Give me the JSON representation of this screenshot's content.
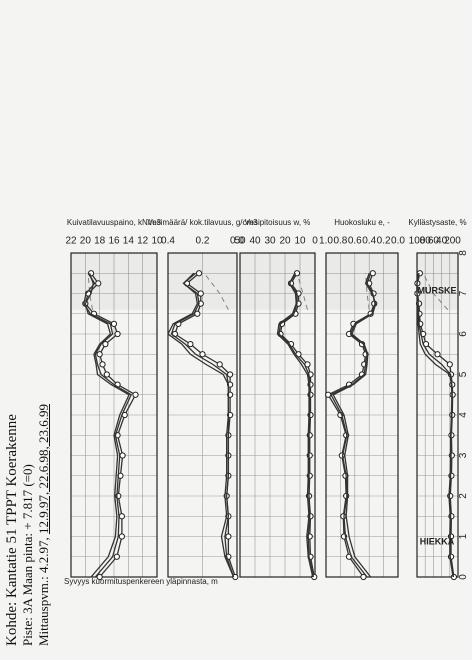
{
  "header": {
    "line1": "Kohde: Kantatie 51 TPPT Koerakenne",
    "line2": "Piste: 3A Maan pinta: + 7.817 (=0)",
    "line3_prefix": "Mittauspvm.: 4.2.97,",
    "line3_dates": "12.9.97, 22.6.98, 23.6.99"
  },
  "chart_data": {
    "type": "line",
    "shared_depth_axis": {
      "label": "Syvyys kuormituspenkereen yläpinnasta, m",
      "range": [
        0,
        8
      ],
      "ticks": [
        "0",
        "1",
        "2",
        "3",
        "4",
        "5",
        "6",
        "7",
        "8"
      ]
    },
    "zone_labels": [
      {
        "text": "HIEKKA",
        "depth": 0.8
      },
      {
        "text": "MURSKE",
        "depth": 7.0
      }
    ],
    "panels": [
      {
        "id": "unit-weight",
        "axis_label": "Kuivatilavuuspaino, kN/m3",
        "range": [
          10,
          22
        ],
        "ticks": [
          "10",
          "12",
          "14",
          "16",
          "18",
          "20",
          "22"
        ],
        "series": [
          {
            "depth": [
              0,
              0.5,
              1.0,
              1.5,
              2.0,
              2.5,
              3.0,
              3.5,
              4.0,
              4.5,
              4.75,
              5.0,
              5.25,
              5.5,
              5.75,
              6.0,
              6.25,
              6.5,
              6.75,
              7.0,
              7.25,
              7.5
            ],
            "values": [
              18.0,
              15.6,
              14.9,
              14.9,
              15.4,
              15.1,
              14.8,
              15.5,
              14.5,
              13.0,
              15.5,
              17.0,
              17.6,
              18.0,
              17.2,
              15.5,
              16.0,
              18.8,
              20.0,
              19.6,
              18.2,
              19.2
            ],
            "marker": true
          },
          {
            "depth": [
              0,
              0.5,
              1.0,
              1.5,
              2.0,
              2.5,
              3.0,
              3.5,
              4.0,
              4.5,
              4.75,
              5.0,
              5.25,
              5.5,
              5.75,
              6.0,
              6.25,
              6.5,
              6.75,
              7.0,
              7.25,
              7.5
            ],
            "values": [
              18.6,
              16.2,
              15.4,
              15.3,
              15.6,
              15.4,
              15.2,
              15.8,
              14.9,
              13.6,
              16.0,
              17.8,
              18.3,
              18.6,
              17.8,
              16.2,
              16.5,
              19.3,
              20.2,
              19.9,
              18.7,
              19.6
            ],
            "marker": false
          },
          {
            "depth": [
              0,
              0.5,
              1.0,
              1.5,
              2.0,
              2.5,
              3.0,
              3.5,
              4.0,
              4.5,
              4.75,
              5.0,
              5.25,
              5.5,
              5.75,
              6.0,
              6.25,
              6.5,
              6.75,
              7.0,
              7.25,
              7.5
            ],
            "values": [
              19.2,
              16.8,
              15.8,
              15.6,
              15.9,
              15.7,
              15.5,
              16.0,
              15.2,
              13.9,
              16.4,
              18.3,
              18.5,
              18.8,
              18.0,
              16.5,
              16.9,
              19.6,
              20.0,
              19.2,
              18.9,
              19.4
            ],
            "marker": false
          }
        ],
        "dashed": {
          "depth": [
            6.6,
            7.0,
            7.5
          ],
          "values": [
            19.0,
            19.4,
            19.6
          ]
        }
      },
      {
        "id": "water-content-vol",
        "axis_label": "Vesimäärä/ kok.tilavuus, g/cm3",
        "range": [
          0,
          0.4
        ],
        "ticks": [
          "0.0",
          "0.2",
          "0.4"
        ],
        "series": [
          {
            "depth": [
              0,
              0.5,
              1.0,
              1.5,
              2.0,
              2.5,
              3.0,
              3.5,
              4.0,
              4.5,
              4.75,
              5.0,
              5.25,
              5.5,
              5.75,
              6.0,
              6.25,
              6.5,
              6.75,
              7.0,
              7.25,
              7.5
            ],
            "values": [
              0.01,
              0.05,
              0.05,
              0.05,
              0.06,
              0.05,
              0.05,
              0.05,
              0.04,
              0.04,
              0.04,
              0.04,
              0.1,
              0.2,
              0.27,
              0.36,
              0.34,
              0.23,
              0.21,
              0.21,
              0.29,
              0.22
            ],
            "marker": true
          },
          {
            "depth": [
              0,
              0.5,
              1.0,
              1.5,
              2.0,
              2.5,
              3.0,
              3.5,
              4.0,
              4.5,
              4.75,
              5.0,
              5.25,
              5.5,
              5.75,
              6.0,
              6.25,
              6.5,
              6.75,
              7.0,
              7.25,
              7.5
            ],
            "values": [
              0.02,
              0.06,
              0.07,
              0.05,
              0.06,
              0.05,
              0.05,
              0.05,
              0.05,
              0.05,
              0.05,
              0.06,
              0.14,
              0.24,
              0.3,
              0.38,
              0.36,
              0.25,
              0.22,
              0.23,
              0.31,
              0.24
            ],
            "marker": false
          },
          {
            "depth": [
              0,
              0.5,
              1.0,
              1.5,
              2.0,
              2.5,
              3.0,
              3.5,
              4.0,
              4.5,
              4.75,
              5.0,
              5.25,
              5.5,
              5.75,
              6.0,
              6.25,
              6.5,
              6.75,
              7.0,
              7.25,
              7.5
            ],
            "values": [
              0.02,
              0.07,
              0.09,
              0.06,
              0.07,
              0.06,
              0.06,
              0.06,
              0.05,
              0.05,
              0.05,
              0.08,
              0.18,
              0.27,
              0.32,
              0.4,
              0.37,
              0.26,
              0.23,
              0.24,
              0.31,
              0.25
            ],
            "marker": false
          }
        ],
        "dashed": {
          "depth": [
            6.6,
            7.0,
            7.5
          ],
          "values": [
            0.05,
            0.1,
            0.19
          ]
        }
      },
      {
        "id": "water-content",
        "axis_label": "Vesipitoisuus w, %",
        "range": [
          0,
          50
        ],
        "ticks": [
          "0",
          "10",
          "20",
          "30",
          "40",
          "50"
        ],
        "series": [
          {
            "depth": [
              0,
              0.5,
              1.0,
              1.5,
              2.0,
              2.5,
              3.0,
              3.5,
              4.0,
              4.5,
              4.75,
              5.0,
              5.25,
              5.5,
              5.75,
              6.0,
              6.25,
              6.5,
              6.75,
              7.0,
              7.25,
              7.5
            ],
            "values": [
              0.5,
              3,
              3.5,
              3,
              4,
              3.5,
              3.5,
              3.5,
              3,
              3,
              3,
              3,
              5,
              11,
              16,
              23,
              22,
              13,
              11,
              11,
              16,
              12
            ],
            "marker": true
          },
          {
            "depth": [
              0,
              0.5,
              1.0,
              1.5,
              2.0,
              2.5,
              3.0,
              3.5,
              4.0,
              4.5,
              4.75,
              5.0,
              5.25,
              5.5,
              5.75,
              6.0,
              6.25,
              6.5,
              6.75,
              7.0,
              7.25,
              7.5
            ],
            "values": [
              1,
              4,
              4.5,
              3.5,
              4,
              4,
              4,
              4,
              3.5,
              3.5,
              3.5,
              4,
              7,
              13,
              17,
              24,
              23,
              14,
              12,
              12,
              17,
              13
            ],
            "marker": false
          },
          {
            "depth": [
              0,
              0.5,
              1.0,
              1.5,
              2.0,
              2.5,
              3.0,
              3.5,
              4.0,
              4.5,
              4.75,
              5.0,
              5.25,
              5.5,
              5.75,
              6.0,
              6.25,
              6.5,
              6.75,
              7.0,
              7.25,
              7.5
            ],
            "values": [
              1.5,
              4.5,
              5.5,
              4,
              5,
              4.5,
              4.5,
              4.5,
              4,
              4,
              4,
              5,
              9,
              14,
              18,
              25,
              24,
              15,
              12.5,
              13,
              17,
              13.5
            ],
            "marker": false
          }
        ],
        "dashed": {
          "depth": [
            6.6,
            7.0,
            7.5
          ],
          "values": [
            5,
            8,
            12
          ]
        }
      },
      {
        "id": "void-ratio",
        "axis_label": "Huokosluku e, -",
        "range": [
          0,
          1.0
        ],
        "ticks": [
          "0.0",
          "0.2",
          "0.4",
          "0.6",
          "0.8",
          "1.0"
        ],
        "series": [
          {
            "depth": [
              0,
              0.5,
              1.0,
              1.5,
              2.0,
              2.5,
              3.0,
              3.5,
              4.0,
              4.5,
              4.75,
              5.0,
              5.25,
              5.5,
              5.75,
              6.0,
              6.25,
              6.5,
              6.75,
              7.0,
              7.25,
              7.5
            ],
            "values": [
              0.48,
              0.68,
              0.75,
              0.76,
              0.72,
              0.73,
              0.78,
              0.72,
              0.8,
              0.97,
              0.68,
              0.5,
              0.47,
              0.45,
              0.5,
              0.68,
              0.62,
              0.38,
              0.33,
              0.34,
              0.4,
              0.35
            ],
            "marker": true
          },
          {
            "depth": [
              0,
              0.5,
              1.0,
              1.5,
              2.0,
              2.5,
              3.0,
              3.5,
              4.0,
              4.5,
              4.75,
              5.0,
              5.25,
              5.5,
              5.75,
              6.0,
              6.25,
              6.5,
              6.75,
              7.0,
              7.25,
              7.5
            ],
            "values": [
              0.43,
              0.65,
              0.73,
              0.75,
              0.71,
              0.72,
              0.77,
              0.71,
              0.78,
              0.93,
              0.64,
              0.47,
              0.45,
              0.43,
              0.48,
              0.66,
              0.6,
              0.36,
              0.32,
              0.35,
              0.43,
              0.38
            ],
            "marker": false
          },
          {
            "depth": [
              0,
              0.5,
              1.0,
              1.5,
              2.0,
              2.5,
              3.0,
              3.5,
              4.0,
              4.5,
              4.75,
              5.0,
              5.25,
              5.5,
              5.75,
              6.0,
              6.25,
              6.5,
              6.75,
              7.0,
              7.25,
              7.5
            ],
            "values": [
              0.38,
              0.6,
              0.68,
              0.72,
              0.7,
              0.7,
              0.74,
              0.69,
              0.75,
              0.9,
              0.62,
              0.45,
              0.43,
              0.42,
              0.47,
              0.64,
              0.58,
              0.35,
              0.31,
              0.36,
              0.45,
              0.4
            ],
            "marker": false
          }
        ],
        "dashed": {
          "depth": [
            6.6,
            7.0,
            7.5
          ],
          "values": [
            0.4,
            0.43,
            0.45
          ]
        }
      },
      {
        "id": "saturation",
        "axis_label": "Kyllästysaste, %",
        "range": [
          0,
          100
        ],
        "ticks": [
          "0",
          "20",
          "40",
          "60",
          "80",
          "100"
        ],
        "series": [
          {
            "depth": [
              0,
              0.5,
              1.0,
              1.5,
              2.0,
              2.5,
              3.0,
              3.5,
              4.0,
              4.5,
              4.75,
              5.0,
              5.25,
              5.5,
              5.75,
              6.0,
              6.25,
              6.5,
              6.75,
              7.0,
              7.25,
              7.5
            ],
            "values": [
              10,
              17,
              17,
              16,
              19,
              16,
              15,
              16,
              14,
              13,
              14,
              17,
              20,
              50,
              78,
              85,
              92,
              94,
              95,
              99,
              99,
              93
            ],
            "marker": true
          },
          {
            "depth": [
              0,
              0.5,
              1.0,
              1.5,
              2.0,
              2.5,
              3.0,
              3.5,
              4.0,
              4.5,
              4.75,
              5.0,
              5.25,
              5.5,
              5.75,
              6.0,
              6.25,
              6.5,
              6.75,
              7.0,
              7.25,
              7.5
            ],
            "values": [
              11,
              19,
              19,
              18,
              21,
              18,
              17,
              17,
              15,
              14,
              15,
              18,
              40,
              70,
              85,
              90,
              95,
              96,
              97,
              100,
              100,
              95
            ],
            "marker": false
          },
          {
            "depth": [
              0,
              0.5,
              1.0,
              1.5,
              2.0,
              2.5,
              3.0,
              3.5,
              4.0,
              4.5,
              4.75,
              5.0,
              5.25,
              5.5,
              5.75,
              6.0,
              6.25,
              6.5,
              6.75,
              7.0,
              7.25,
              7.5
            ],
            "values": [
              12,
              20,
              20,
              19,
              22,
              19,
              18,
              18,
              16,
              15,
              16,
              20,
              55,
              80,
              92,
              95,
              97,
              98,
              98,
              100,
              100,
              96
            ],
            "marker": false
          }
        ],
        "dashed": {
          "depth": [
            6.6,
            7.0,
            7.5
          ],
          "values": [
            25,
            60,
            85
          ]
        }
      }
    ]
  }
}
